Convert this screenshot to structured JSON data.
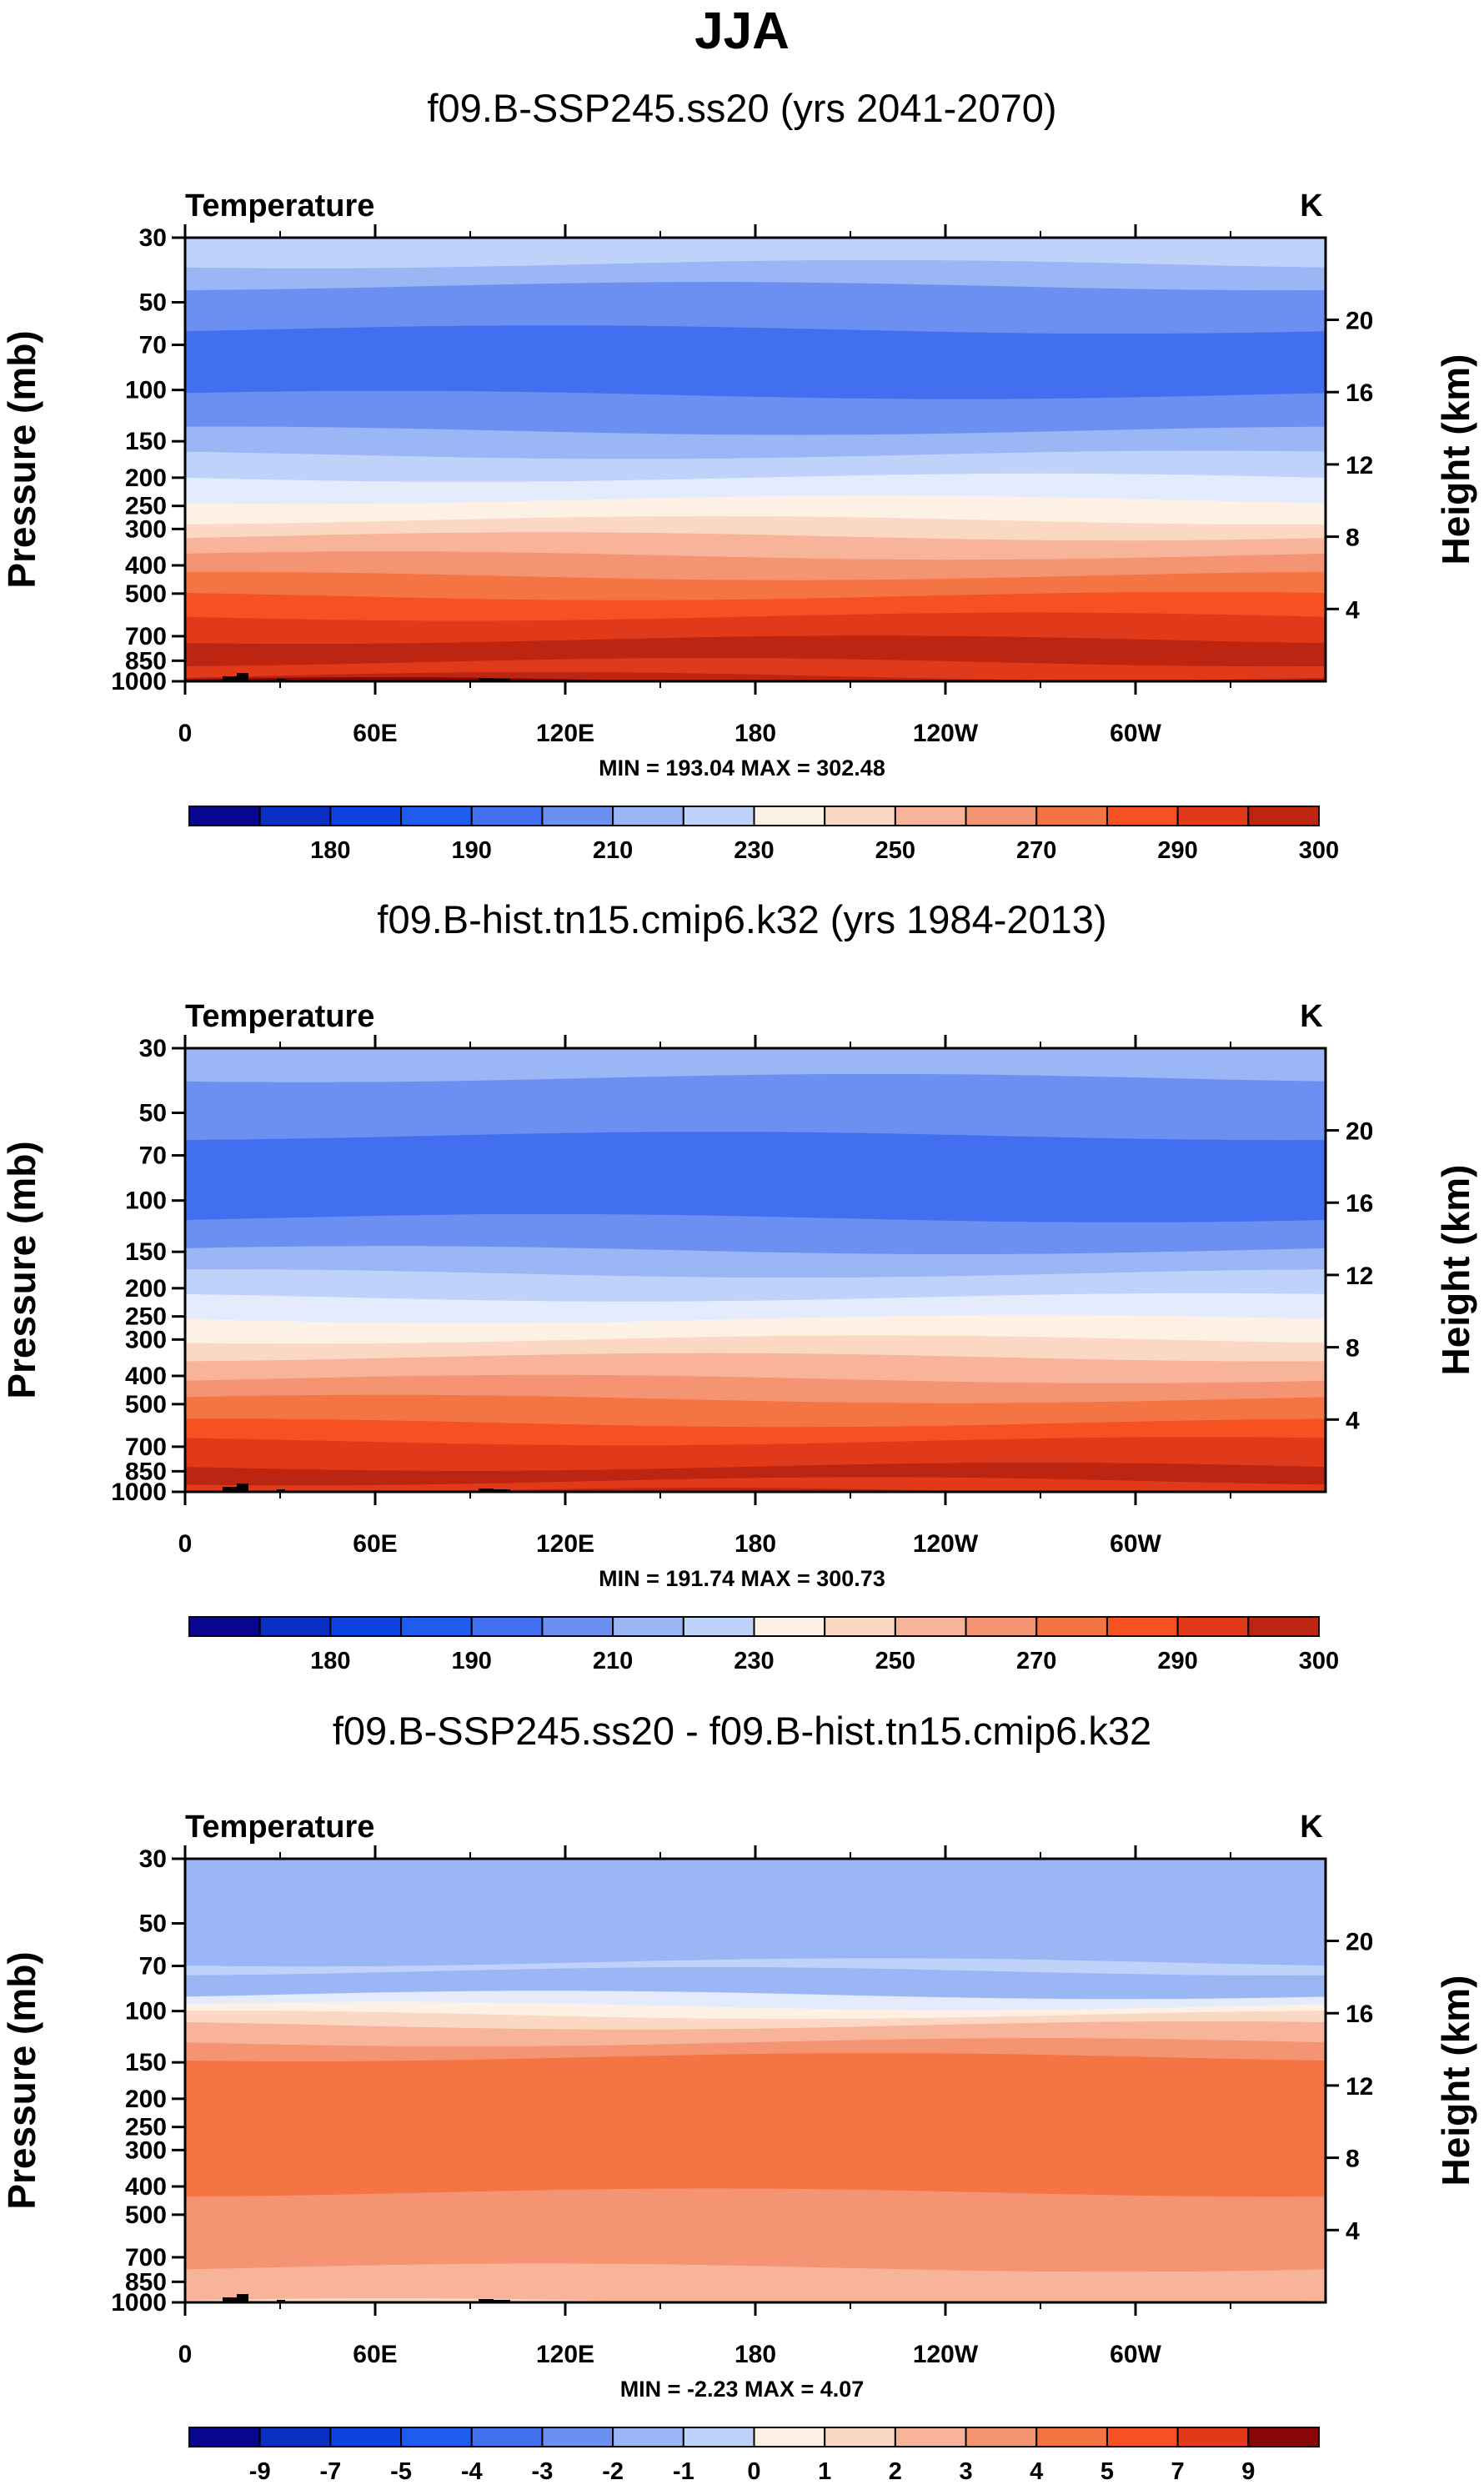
{
  "title": "JJA",
  "colors": {
    "palette": [
      "#08068f",
      "#0a2fc3",
      "#0d43de",
      "#1e5bef",
      "#416fef",
      "#6b90f2",
      "#9ab6f5",
      "#bfd2fa",
      "#e3ebfc",
      "#fdf1e6",
      "#fbd8c3",
      "#f8b49b",
      "#f59472",
      "#f57444",
      "#f55122",
      "#e13a1a",
      "#bb2512",
      "#880706"
    ],
    "outline": "#000000",
    "topography": "#000000"
  },
  "chart_data": [
    {
      "type": "contour",
      "title": "f09.B-SSP245.ss20 (yrs 2041-2070)",
      "variable": "Temperature",
      "units": "K",
      "xlabel": "",
      "ylabel": "Pressure (mb)",
      "ylabel_right": "Height (km)",
      "x_ticks": [
        "0",
        "60E",
        "120E",
        "180",
        "120W",
        "60W"
      ],
      "x_lon": [
        0,
        60,
        120,
        180,
        240,
        300
      ],
      "xlim": [
        0,
        360
      ],
      "y_ticks_pressure": [
        "30",
        "50",
        "70",
        "100",
        "150",
        "200",
        "250",
        "300",
        "400",
        "500",
        "700",
        "850",
        "1000"
      ],
      "y_ticks_pressure_values": [
        30,
        50,
        70,
        100,
        150,
        200,
        250,
        300,
        400,
        500,
        700,
        850,
        1000
      ],
      "y_ticks_height": [
        "20",
        "16",
        "12",
        "8",
        "4"
      ],
      "y_ticks_height_values": [
        20,
        16,
        12,
        8,
        4
      ],
      "ylim": [
        1000,
        30
      ],
      "min_max_text": "MIN = 193.04   MAX = 302.48",
      "min": 193.04,
      "max": 302.48,
      "contour_levels": [
        175,
        180,
        185,
        190,
        200,
        210,
        220,
        230,
        240,
        250,
        260,
        270,
        280,
        290,
        295,
        300,
        305
      ],
      "colorbar_labels": [
        "180",
        "190",
        "210",
        "230",
        "250",
        "270",
        "290",
        "300"
      ],
      "profile_pressure": [
        30,
        37,
        44,
        62,
        104,
        138,
        167,
        200,
        238,
        280,
        318,
        370,
        435,
        510,
        600,
        720,
        860,
        960,
        1000
      ],
      "profile_band": [
        7,
        6,
        5,
        4,
        5,
        6,
        7,
        8,
        9,
        10,
        11,
        12,
        13,
        14,
        15,
        16,
        15,
        16,
        17
      ]
    },
    {
      "type": "contour",
      "title": "f09.B-hist.tn15.cmip6.k32 (yrs 1984-2013)",
      "variable": "Temperature",
      "units": "K",
      "xlabel": "",
      "ylabel": "Pressure (mb)",
      "ylabel_right": "Height (km)",
      "x_ticks": [
        "0",
        "60E",
        "120E",
        "180",
        "120W",
        "60W"
      ],
      "x_lon": [
        0,
        60,
        120,
        180,
        240,
        300
      ],
      "xlim": [
        0,
        360
      ],
      "y_ticks_pressure": [
        "30",
        "50",
        "70",
        "100",
        "150",
        "200",
        "250",
        "300",
        "400",
        "500",
        "700",
        "850",
        "1000"
      ],
      "y_ticks_pressure_values": [
        30,
        50,
        70,
        100,
        150,
        200,
        250,
        300,
        400,
        500,
        700,
        850,
        1000
      ],
      "y_ticks_height": [
        "20",
        "16",
        "12",
        "8",
        "4"
      ],
      "y_ticks_height_values": [
        20,
        16,
        12,
        8,
        4
      ],
      "ylim": [
        1000,
        30
      ],
      "min_max_text": "MIN = 191.74   MAX = 300.73",
      "min": 191.74,
      "max": 300.73,
      "contour_levels": [
        175,
        180,
        185,
        190,
        200,
        210,
        220,
        230,
        240,
        250,
        260,
        270,
        280,
        290,
        295,
        300,
        305
      ],
      "colorbar_labels": [
        "180",
        "190",
        "210",
        "230",
        "250",
        "270",
        "290",
        "300"
      ],
      "profile_pressure": [
        30,
        38,
        60,
        115,
        148,
        178,
        215,
        255,
        300,
        345,
        410,
        480,
        580,
        670,
        820,
        920,
        1000
      ],
      "profile_band": [
        6,
        5,
        4,
        5,
        6,
        7,
        8,
        9,
        10,
        11,
        12,
        13,
        14,
        15,
        16,
        15,
        16
      ]
    },
    {
      "type": "contour",
      "title": "f09.B-SSP245.ss20 - f09.B-hist.tn15.cmip6.k32",
      "variable": "Temperature",
      "units": "K",
      "xlabel": "",
      "ylabel": "Pressure (mb)",
      "ylabel_right": "Height (km)",
      "x_ticks": [
        "0",
        "60E",
        "120E",
        "180",
        "120W",
        "60W"
      ],
      "x_lon": [
        0,
        60,
        120,
        180,
        240,
        300
      ],
      "xlim": [
        0,
        360
      ],
      "y_ticks_pressure": [
        "30",
        "50",
        "70",
        "100",
        "150",
        "200",
        "250",
        "300",
        "400",
        "500",
        "700",
        "850",
        "1000"
      ],
      "y_ticks_pressure_values": [
        30,
        50,
        70,
        100,
        150,
        200,
        250,
        300,
        400,
        500,
        700,
        850,
        1000
      ],
      "y_ticks_height": [
        "20",
        "16",
        "12",
        "8",
        "4"
      ],
      "y_ticks_height_values": [
        20,
        16,
        12,
        8,
        4
      ],
      "ylim": [
        1000,
        30
      ],
      "min_max_text": "MIN = -2.23   MAX = 4.07",
      "min": -2.23,
      "max": 4.07,
      "contour_levels": [
        -9,
        -7,
        -5,
        -4,
        -3,
        -2,
        -1,
        0,
        1,
        2,
        3,
        4,
        5,
        7,
        9
      ],
      "colorbar_labels": [
        "-9",
        "-7",
        "-5",
        "-4",
        "-3",
        "-2",
        "-1",
        "0",
        "1",
        "2",
        "3",
        "4",
        "5",
        "7",
        "9"
      ],
      "profile_pressure": [
        30,
        68,
        73,
        88,
        96,
        103,
        112,
        128,
        144,
        420,
        760,
        1000
      ],
      "profile_band": [
        6,
        7,
        6,
        8,
        9,
        10,
        11,
        12,
        13,
        12,
        11,
        10
      ]
    }
  ]
}
